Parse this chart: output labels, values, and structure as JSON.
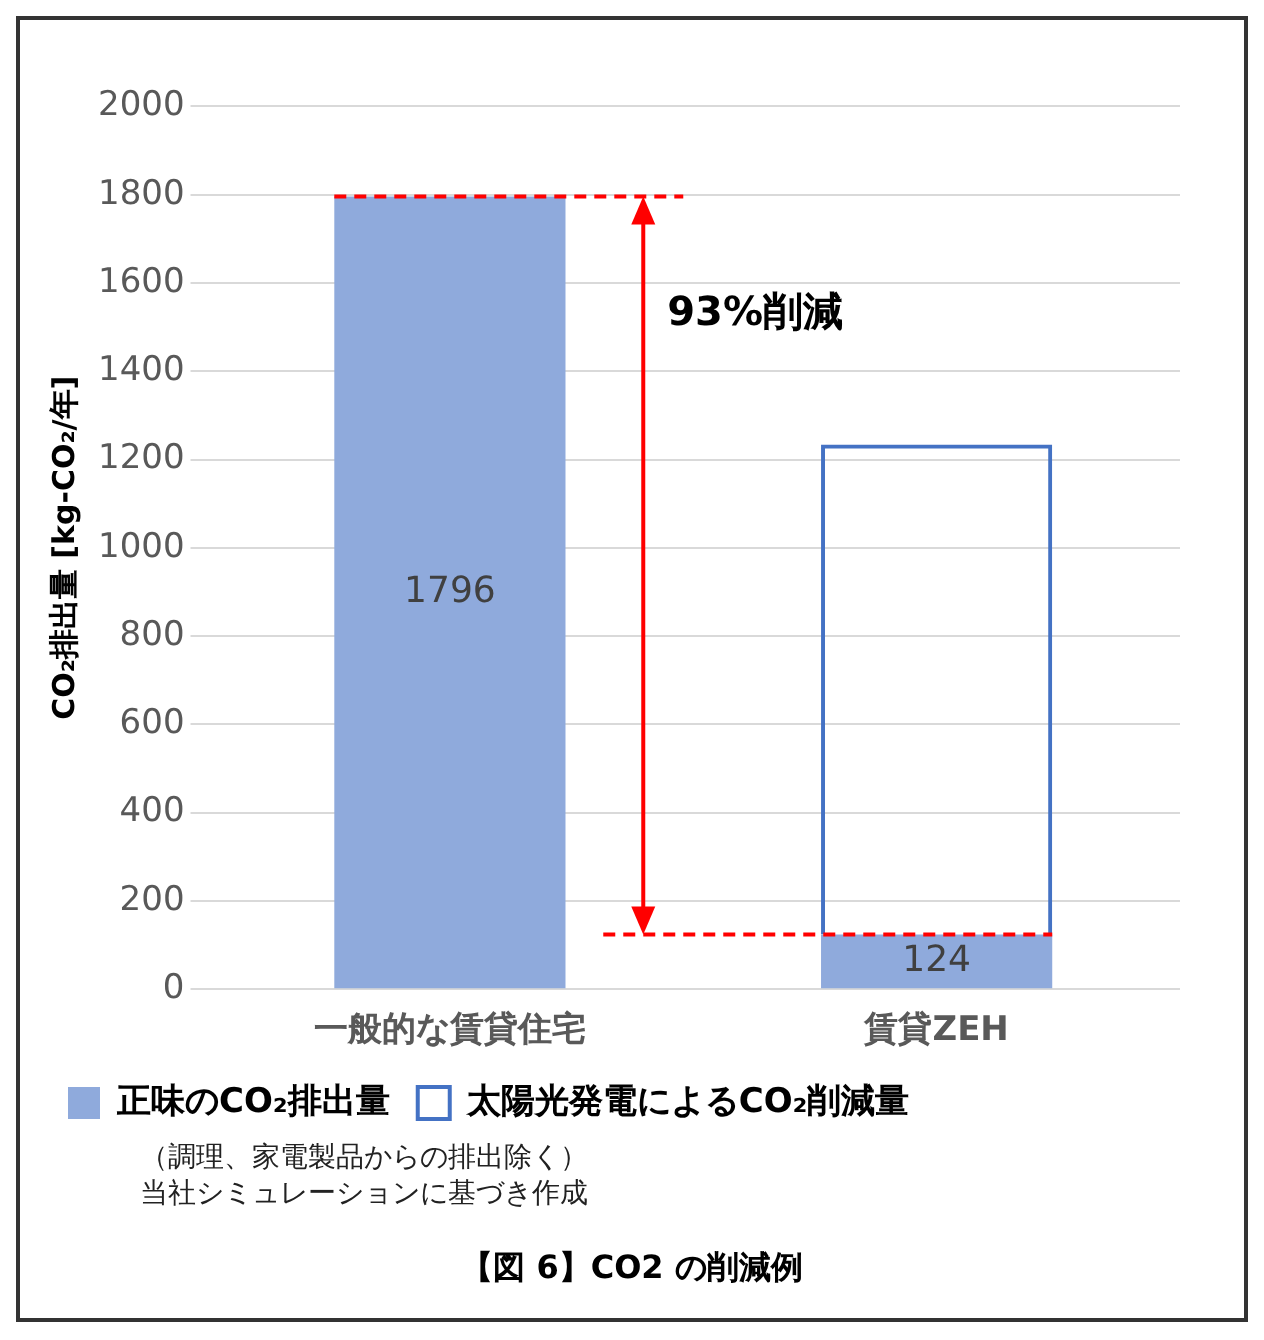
{
  "chart_data": {
    "type": "bar",
    "title": "【図 6】CO2 の削減例",
    "ylabel": "CO₂排出量 [kg-CO₂/年]",
    "categories": [
      "一般的な賃貸住宅",
      "賃貸ZEH"
    ],
    "stacked": true,
    "series": [
      {
        "name": "正味のCO₂排出量",
        "color": "#8faadc",
        "values": [
          1796,
          124
        ],
        "value_labels": [
          "1796",
          "124"
        ]
      },
      {
        "name": "太陽光発電によるCO₂削減量",
        "color": "#4472c4",
        "values": [
          null,
          1110
        ],
        "line_style": "dashed"
      }
    ],
    "ylim": [
      0,
      2000
    ],
    "yticks": [
      0,
      200,
      400,
      600,
      800,
      1000,
      1200,
      1400,
      1600,
      1800,
      2000
    ],
    "grid": "y",
    "legend": "bottom",
    "ref_lines": [
      {
        "axis": "y",
        "value": 1796,
        "color": "#ff0000",
        "line_style": "dashed"
      },
      {
        "axis": "y",
        "value": 124,
        "color": "#ff0000",
        "line_style": "dashed"
      }
    ],
    "annotations": [
      "93%削減",
      "（調理、家電製品からの排出除く）",
      "当社シミュレーションに基づき作成"
    ]
  }
}
